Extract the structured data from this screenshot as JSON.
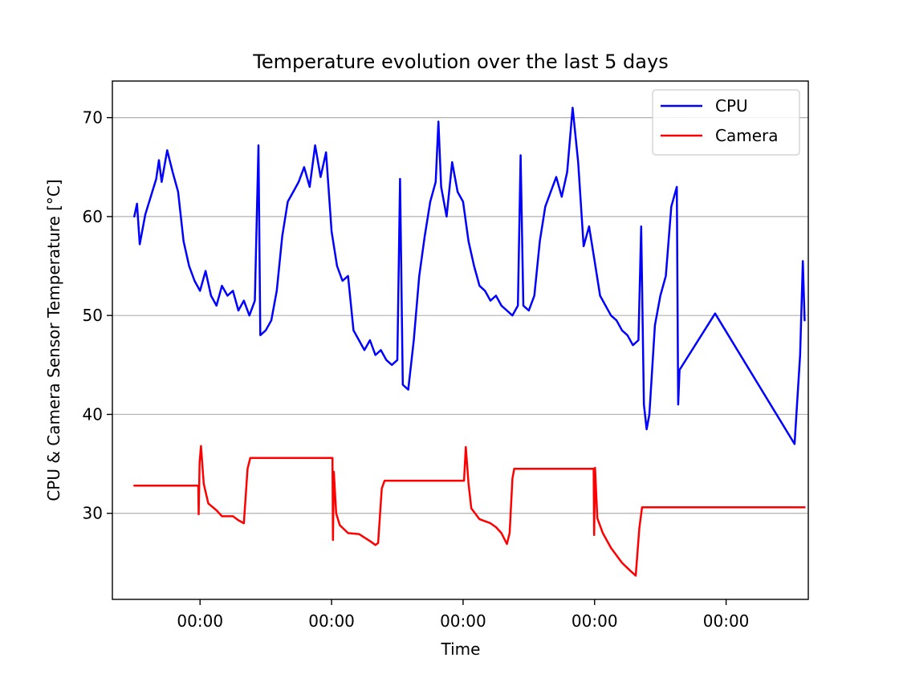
{
  "chart_data": {
    "type": "line",
    "title": "Temperature evolution over the last 5 days",
    "xlabel": "Time",
    "ylabel": "CPU & Camera Sensor Temperature [°C]",
    "ylim": [
      21.3,
      73.7
    ],
    "xlim": [
      "day 1 08:00",
      "day 6 15:00"
    ],
    "x_ticks": [
      {
        "t": "day 2 00:00",
        "label": "00:00"
      },
      {
        "t": "day 3 00:00",
        "label": "00:00"
      },
      {
        "t": "day 4 00:00",
        "label": "00:00"
      },
      {
        "t": "day 5 00:00",
        "label": "00:00"
      },
      {
        "t": "day 6 00:00",
        "label": "00:00"
      }
    ],
    "y_ticks": [
      30,
      40,
      50,
      60,
      70
    ],
    "grid": "horizontal",
    "legend": "top-right",
    "series": [
      {
        "name": "CPU",
        "color": "#0000ff",
        "points": [
          [
            "day 1 12:00",
            60.0
          ],
          [
            "day 1 12:30",
            61.3
          ],
          [
            "day 1 13:00",
            57.2
          ],
          [
            "day 1 14:00",
            60.2
          ],
          [
            "day 1 15:00",
            62.0
          ],
          [
            "day 1 16:00",
            63.8
          ],
          [
            "day 1 16:30",
            65.7
          ],
          [
            "day 1 17:00",
            63.5
          ],
          [
            "day 1 18:00",
            66.7
          ],
          [
            "day 1 19:00",
            64.5
          ],
          [
            "day 1 20:00",
            62.5
          ],
          [
            "day 1 21:00",
            57.5
          ],
          [
            "day 1 22:00",
            55.0
          ],
          [
            "day 1 23:00",
            53.5
          ],
          [
            "day 2 00:00",
            52.5
          ],
          [
            "day 2 01:00",
            54.5
          ],
          [
            "day 2 02:00",
            52.0
          ],
          [
            "day 2 03:00",
            51.0
          ],
          [
            "day 2 04:00",
            53.0
          ],
          [
            "day 2 05:00",
            52.0
          ],
          [
            "day 2 06:00",
            52.5
          ],
          [
            "day 2 07:00",
            50.5
          ],
          [
            "day 2 08:00",
            51.5
          ],
          [
            "day 2 09:00",
            50.0
          ],
          [
            "day 2 10:00",
            51.5
          ],
          [
            "day 2 10:40",
            67.2
          ],
          [
            "day 2 11:00",
            48.0
          ],
          [
            "day 2 12:00",
            48.5
          ],
          [
            "day 2 13:00",
            49.5
          ],
          [
            "day 2 14:00",
            52.5
          ],
          [
            "day 2 15:00",
            58.0
          ],
          [
            "day 2 16:00",
            61.5
          ],
          [
            "day 2 17:00",
            62.5
          ],
          [
            "day 2 18:00",
            63.5
          ],
          [
            "day 2 19:00",
            65.0
          ],
          [
            "day 2 20:00",
            63.0
          ],
          [
            "day 2 21:00",
            67.2
          ],
          [
            "day 2 22:00",
            64.0
          ],
          [
            "day 2 23:00",
            66.5
          ],
          [
            "day 3 00:00",
            58.5
          ],
          [
            "day 3 01:00",
            55.0
          ],
          [
            "day 3 02:00",
            53.5
          ],
          [
            "day 3 03:00",
            54.0
          ],
          [
            "day 3 04:00",
            48.5
          ],
          [
            "day 3 05:00",
            47.5
          ],
          [
            "day 3 06:00",
            46.5
          ],
          [
            "day 3 07:00",
            47.5
          ],
          [
            "day 3 08:00",
            46.0
          ],
          [
            "day 3 09:00",
            46.5
          ],
          [
            "day 3 10:00",
            45.5
          ],
          [
            "day 3 11:00",
            45.0
          ],
          [
            "day 3 12:00",
            45.5
          ],
          [
            "day 3 12:30",
            63.8
          ],
          [
            "day 3 13:00",
            43.0
          ],
          [
            "day 3 14:00",
            42.5
          ],
          [
            "day 3 15:00",
            47.5
          ],
          [
            "day 3 16:00",
            54.0
          ],
          [
            "day 3 17:00",
            58.0
          ],
          [
            "day 3 18:00",
            61.5
          ],
          [
            "day 3 19:00",
            63.5
          ],
          [
            "day 3 19:30",
            69.6
          ],
          [
            "day 3 20:00",
            63.0
          ],
          [
            "day 3 21:00",
            60.0
          ],
          [
            "day 3 22:00",
            65.5
          ],
          [
            "day 3 23:00",
            62.5
          ],
          [
            "day 4 00:00",
            61.5
          ],
          [
            "day 4 01:00",
            57.5
          ],
          [
            "day 4 02:00",
            55.0
          ],
          [
            "day 4 03:00",
            53.0
          ],
          [
            "day 4 04:00",
            52.5
          ],
          [
            "day 4 05:00",
            51.5
          ],
          [
            "day 4 06:00",
            52.0
          ],
          [
            "day 4 07:00",
            51.0
          ],
          [
            "day 4 08:00",
            50.5
          ],
          [
            "day 4 09:00",
            50.0
          ],
          [
            "day 4 10:00",
            51.0
          ],
          [
            "day 4 10:30",
            66.2
          ],
          [
            "day 4 11:00",
            51.0
          ],
          [
            "day 4 12:00",
            50.5
          ],
          [
            "day 4 13:00",
            52.0
          ],
          [
            "day 4 14:00",
            57.5
          ],
          [
            "day 4 15:00",
            61.0
          ],
          [
            "day 4 16:00",
            62.5
          ],
          [
            "day 4 17:00",
            64.0
          ],
          [
            "day 4 18:00",
            62.0
          ],
          [
            "day 4 19:00",
            64.5
          ],
          [
            "day 4 20:00",
            71.0
          ],
          [
            "day 4 21:00",
            65.5
          ],
          [
            "day 4 22:00",
            57.0
          ],
          [
            "day 4 23:00",
            59.0
          ],
          [
            "day 5 00:00",
            55.5
          ],
          [
            "day 5 01:00",
            52.0
          ],
          [
            "day 5 02:00",
            51.0
          ],
          [
            "day 5 03:00",
            50.0
          ],
          [
            "day 5 04:00",
            49.5
          ],
          [
            "day 5 05:00",
            48.5
          ],
          [
            "day 5 06:00",
            48.0
          ],
          [
            "day 5 07:00",
            47.0
          ],
          [
            "day 5 08:00",
            47.5
          ],
          [
            "day 5 08:30",
            59.0
          ],
          [
            "day 5 09:00",
            41.0
          ],
          [
            "day 5 09:30",
            38.5
          ],
          [
            "day 5 10:00",
            40.0
          ],
          [
            "day 5 11:00",
            49.0
          ],
          [
            "day 5 12:00",
            52.0
          ],
          [
            "day 5 13:00",
            54.0
          ],
          [
            "day 5 14:00",
            61.0
          ],
          [
            "day 5 15:00",
            63.0
          ],
          [
            "day 5 15:15",
            41.0
          ],
          [
            "day 5 15:30",
            44.5
          ],
          [
            "day 5 22:00",
            50.2
          ],
          [
            "day 6 12:30",
            37.0
          ],
          [
            "day 6 13:30",
            46.0
          ],
          [
            "day 6 14:00",
            55.5
          ],
          [
            "day 6 14:20",
            49.5
          ]
        ]
      },
      {
        "name": "Camera",
        "color": "#ff0000",
        "points": [
          [
            "day 1 12:00",
            32.8
          ],
          [
            "day 1 23:40",
            32.8
          ],
          [
            "day 1 23:45",
            29.9
          ],
          [
            "day 1 23:55",
            35.2
          ],
          [
            "day 2 00:10",
            36.8
          ],
          [
            "day 2 00:40",
            33.0
          ],
          [
            "day 2 01:30",
            31.0
          ],
          [
            "day 2 03:00",
            30.3
          ],
          [
            "day 2 04:00",
            29.7
          ],
          [
            "day 2 06:00",
            29.7
          ],
          [
            "day 2 07:00",
            29.3
          ],
          [
            "day 2 08:00",
            29.0
          ],
          [
            "day 2 08:40",
            34.5
          ],
          [
            "day 2 09:10",
            35.6
          ],
          [
            "day 3 00:10",
            35.6
          ],
          [
            "day 3 00:15",
            27.3
          ],
          [
            "day 3 00:25",
            34.2
          ],
          [
            "day 3 00:50",
            30.0
          ],
          [
            "day 3 01:30",
            28.8
          ],
          [
            "day 3 03:00",
            28.0
          ],
          [
            "day 3 05:00",
            27.9
          ],
          [
            "day 3 07:00",
            27.2
          ],
          [
            "day 3 08:00",
            26.8
          ],
          [
            "day 3 08:30",
            27.0
          ],
          [
            "day 3 09:10",
            32.5
          ],
          [
            "day 3 09:40",
            33.3
          ],
          [
            "day 4 00:10",
            33.3
          ],
          [
            "day 4 00:30",
            36.7
          ],
          [
            "day 4 01:00",
            33.0
          ],
          [
            "day 4 01:30",
            30.5
          ],
          [
            "day 4 03:00",
            29.4
          ],
          [
            "day 4 05:00",
            29.0
          ],
          [
            "day 4 06:00",
            28.6
          ],
          [
            "day 4 07:00",
            28.0
          ],
          [
            "day 4 08:00",
            26.9
          ],
          [
            "day 4 08:30",
            28.0
          ],
          [
            "day 4 09:00",
            33.5
          ],
          [
            "day 4 09:20",
            34.5
          ],
          [
            "day 4 23:50",
            34.5
          ],
          [
            "day 4 23:55",
            27.8
          ],
          [
            "day 5 00:05",
            34.6
          ],
          [
            "day 5 00:30",
            29.5
          ],
          [
            "day 5 01:30",
            28.0
          ],
          [
            "day 5 03:00",
            26.5
          ],
          [
            "day 5 05:00",
            25.0
          ],
          [
            "day 5 06:30",
            24.2
          ],
          [
            "day 5 07:30",
            23.7
          ],
          [
            "day 5 08:10",
            28.5
          ],
          [
            "day 5 08:40",
            30.6
          ],
          [
            "day 6 14:20",
            30.6
          ]
        ]
      }
    ]
  }
}
